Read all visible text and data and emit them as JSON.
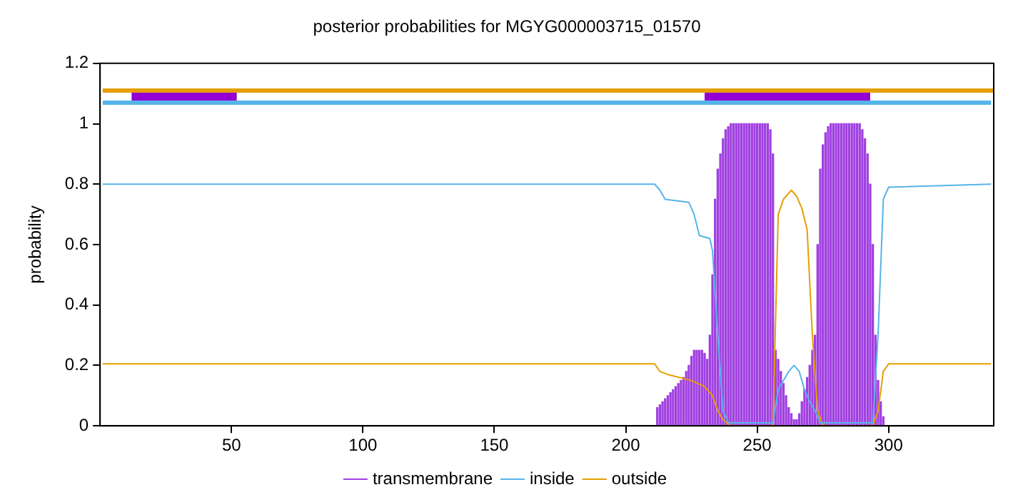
{
  "chart_data": {
    "type": "line",
    "title": "posterior probabilities for MGYG000003715_01570",
    "ylabel": "probability",
    "xlim": [
      0,
      340
    ],
    "xticks": [
      50,
      100,
      150,
      200,
      250,
      300
    ],
    "ylim": [
      0,
      1.2
    ],
    "yticks": [
      0,
      0.2,
      0.4,
      0.6,
      0.8,
      1,
      1.2
    ],
    "grid": false,
    "legend": "bottom",
    "marker": "none",
    "line_style": "solid",
    "series": [
      {
        "name": "transmembrane",
        "type": "bar",
        "color": "#a040e0",
        "x": [
          212,
          213,
          214,
          215,
          216,
          217,
          218,
          219,
          220,
          221,
          222,
          223,
          224,
          225,
          226,
          227,
          228,
          229,
          230,
          231,
          232,
          233,
          234,
          235,
          236,
          237,
          238,
          239,
          240,
          241,
          242,
          243,
          244,
          245,
          246,
          247,
          248,
          249,
          250,
          251,
          252,
          253,
          254,
          255,
          256,
          257,
          258,
          259,
          260,
          261,
          262,
          263,
          264,
          265,
          266,
          267,
          268,
          269,
          270,
          271,
          272,
          273,
          274,
          275,
          276,
          277,
          278,
          279,
          280,
          281,
          282,
          283,
          284,
          285,
          286,
          287,
          288,
          289,
          290,
          291,
          292,
          293,
          294,
          295,
          296,
          297,
          298
        ],
        "values": [
          0.06,
          0.07,
          0.08,
          0.09,
          0.1,
          0.11,
          0.12,
          0.13,
          0.14,
          0.15,
          0.16,
          0.18,
          0.2,
          0.23,
          0.25,
          0.25,
          0.25,
          0.25,
          0.24,
          0.22,
          0.3,
          0.5,
          0.75,
          0.85,
          0.9,
          0.95,
          0.98,
          0.99,
          1,
          1,
          1,
          1,
          1,
          1,
          1,
          1,
          1,
          1,
          1,
          1,
          1,
          1,
          1,
          0.98,
          0.9,
          0.25,
          0.22,
          0.18,
          0.14,
          0.1,
          0.06,
          0.04,
          0.02,
          0.02,
          0.04,
          0.08,
          0.12,
          0.16,
          0.2,
          0.25,
          0.3,
          0.6,
          0.85,
          0.93,
          0.97,
          0.99,
          1,
          1,
          1,
          1,
          1,
          1,
          1,
          1,
          1,
          1,
          1,
          1,
          0.98,
          0.95,
          0.9,
          0.8,
          0.6,
          0.3,
          0.15,
          0.08,
          0.03
        ]
      },
      {
        "name": "inside",
        "color": "#56b4e9",
        "x": [
          1,
          211,
          213,
          215,
          224,
          226,
          228,
          232,
          233,
          235,
          237,
          239,
          256,
          258,
          262,
          264,
          266,
          268,
          270,
          272,
          274,
          294,
          296,
          298,
          300,
          339
        ],
        "values": [
          0.8,
          0.8,
          0.78,
          0.75,
          0.74,
          0.7,
          0.63,
          0.62,
          0.58,
          0.3,
          0.05,
          0.01,
          0.01,
          0.12,
          0.18,
          0.2,
          0.18,
          0.12,
          0.08,
          0.05,
          0.01,
          0.01,
          0.3,
          0.75,
          0.79,
          0.8
        ]
      },
      {
        "name": "outside",
        "color": "#e69f00",
        "x": [
          1,
          211,
          213,
          216,
          225,
          230,
          233,
          235,
          237,
          240,
          256,
          258,
          260,
          263,
          265,
          267,
          269,
          271,
          273,
          275,
          294,
          296,
          298,
          300,
          339
        ],
        "values": [
          0.205,
          0.205,
          0.18,
          0.17,
          0.15,
          0.13,
          0.1,
          0.05,
          0.02,
          0,
          0,
          0.7,
          0.75,
          0.78,
          0.76,
          0.72,
          0.65,
          0.3,
          0.05,
          0,
          0,
          0.05,
          0.18,
          0.205,
          0.205
        ]
      },
      {
        "color": "#e69f00",
        "x": [
          1,
          340
        ],
        "values": [
          1.11,
          1.11
        ]
      },
      {
        "color": "#56b4e9",
        "x": [
          1,
          339
        ],
        "values": [
          1.07,
          1.07
        ]
      },
      {
        "color": "#9400d3",
        "x": [
          12,
          52,
          53,
          229,
          230,
          293
        ],
        "values": [
          1.09,
          1.09,
          null,
          null,
          1.09,
          1.09
        ]
      }
    ]
  }
}
